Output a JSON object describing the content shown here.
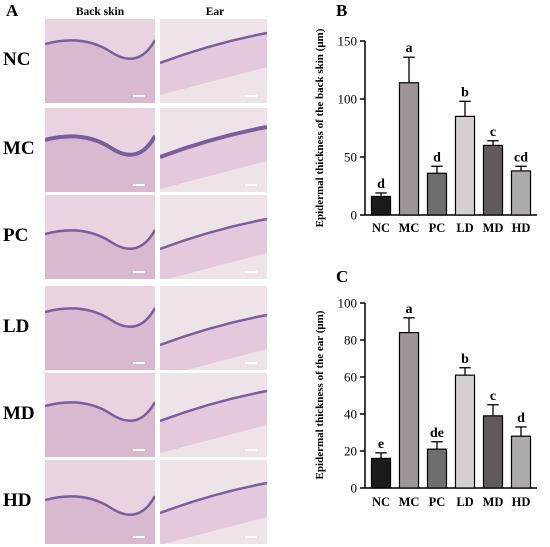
{
  "panels": {
    "a": {
      "letter": "A",
      "columns": [
        "Back skin",
        "Ear"
      ],
      "rows": [
        "NC",
        "MC",
        "PC",
        "LD",
        "MD",
        "HD"
      ]
    },
    "b": {
      "letter": "B"
    },
    "c": {
      "letter": "C"
    }
  },
  "colors": {
    "NC": "#1b1b1b",
    "MC": "#9d959a",
    "PC": "#6e6e6e",
    "LD": "#d4d0d2",
    "MD": "#5f5a5c",
    "HD": "#aeaaac",
    "tissue_back": "#d9b9cf",
    "tissue_ear": "#e4c9dc",
    "epidermis": "#7a5d9c"
  },
  "chart_data": [
    {
      "type": "bar",
      "title": "",
      "xlabel": "",
      "ylabel": "Epidermal thickness of the back skin (μm)",
      "categories": [
        "NC",
        "MC",
        "PC",
        "LD",
        "MD",
        "HD"
      ],
      "values": [
        16,
        114,
        36,
        85,
        60,
        38
      ],
      "errors": [
        3,
        22,
        6,
        13,
        4,
        4
      ],
      "labels": [
        "d",
        "a",
        "d",
        "b",
        "c",
        "cd"
      ],
      "ylim": [
        0,
        150
      ],
      "yticks": [
        0,
        50,
        100,
        150
      ],
      "grid": false
    },
    {
      "type": "bar",
      "title": "",
      "xlabel": "",
      "ylabel": "Epidermal thickness of the ear (μm)",
      "categories": [
        "NC",
        "MC",
        "PC",
        "LD",
        "MD",
        "HD"
      ],
      "values": [
        16,
        84,
        21,
        61,
        39,
        28
      ],
      "errors": [
        3,
        8,
        4,
        4,
        6,
        5
      ],
      "labels": [
        "e",
        "a",
        "de",
        "b",
        "c",
        "d"
      ],
      "ylim": [
        0,
        100
      ],
      "yticks": [
        0,
        20,
        40,
        60,
        80,
        100
      ],
      "grid": false
    }
  ]
}
